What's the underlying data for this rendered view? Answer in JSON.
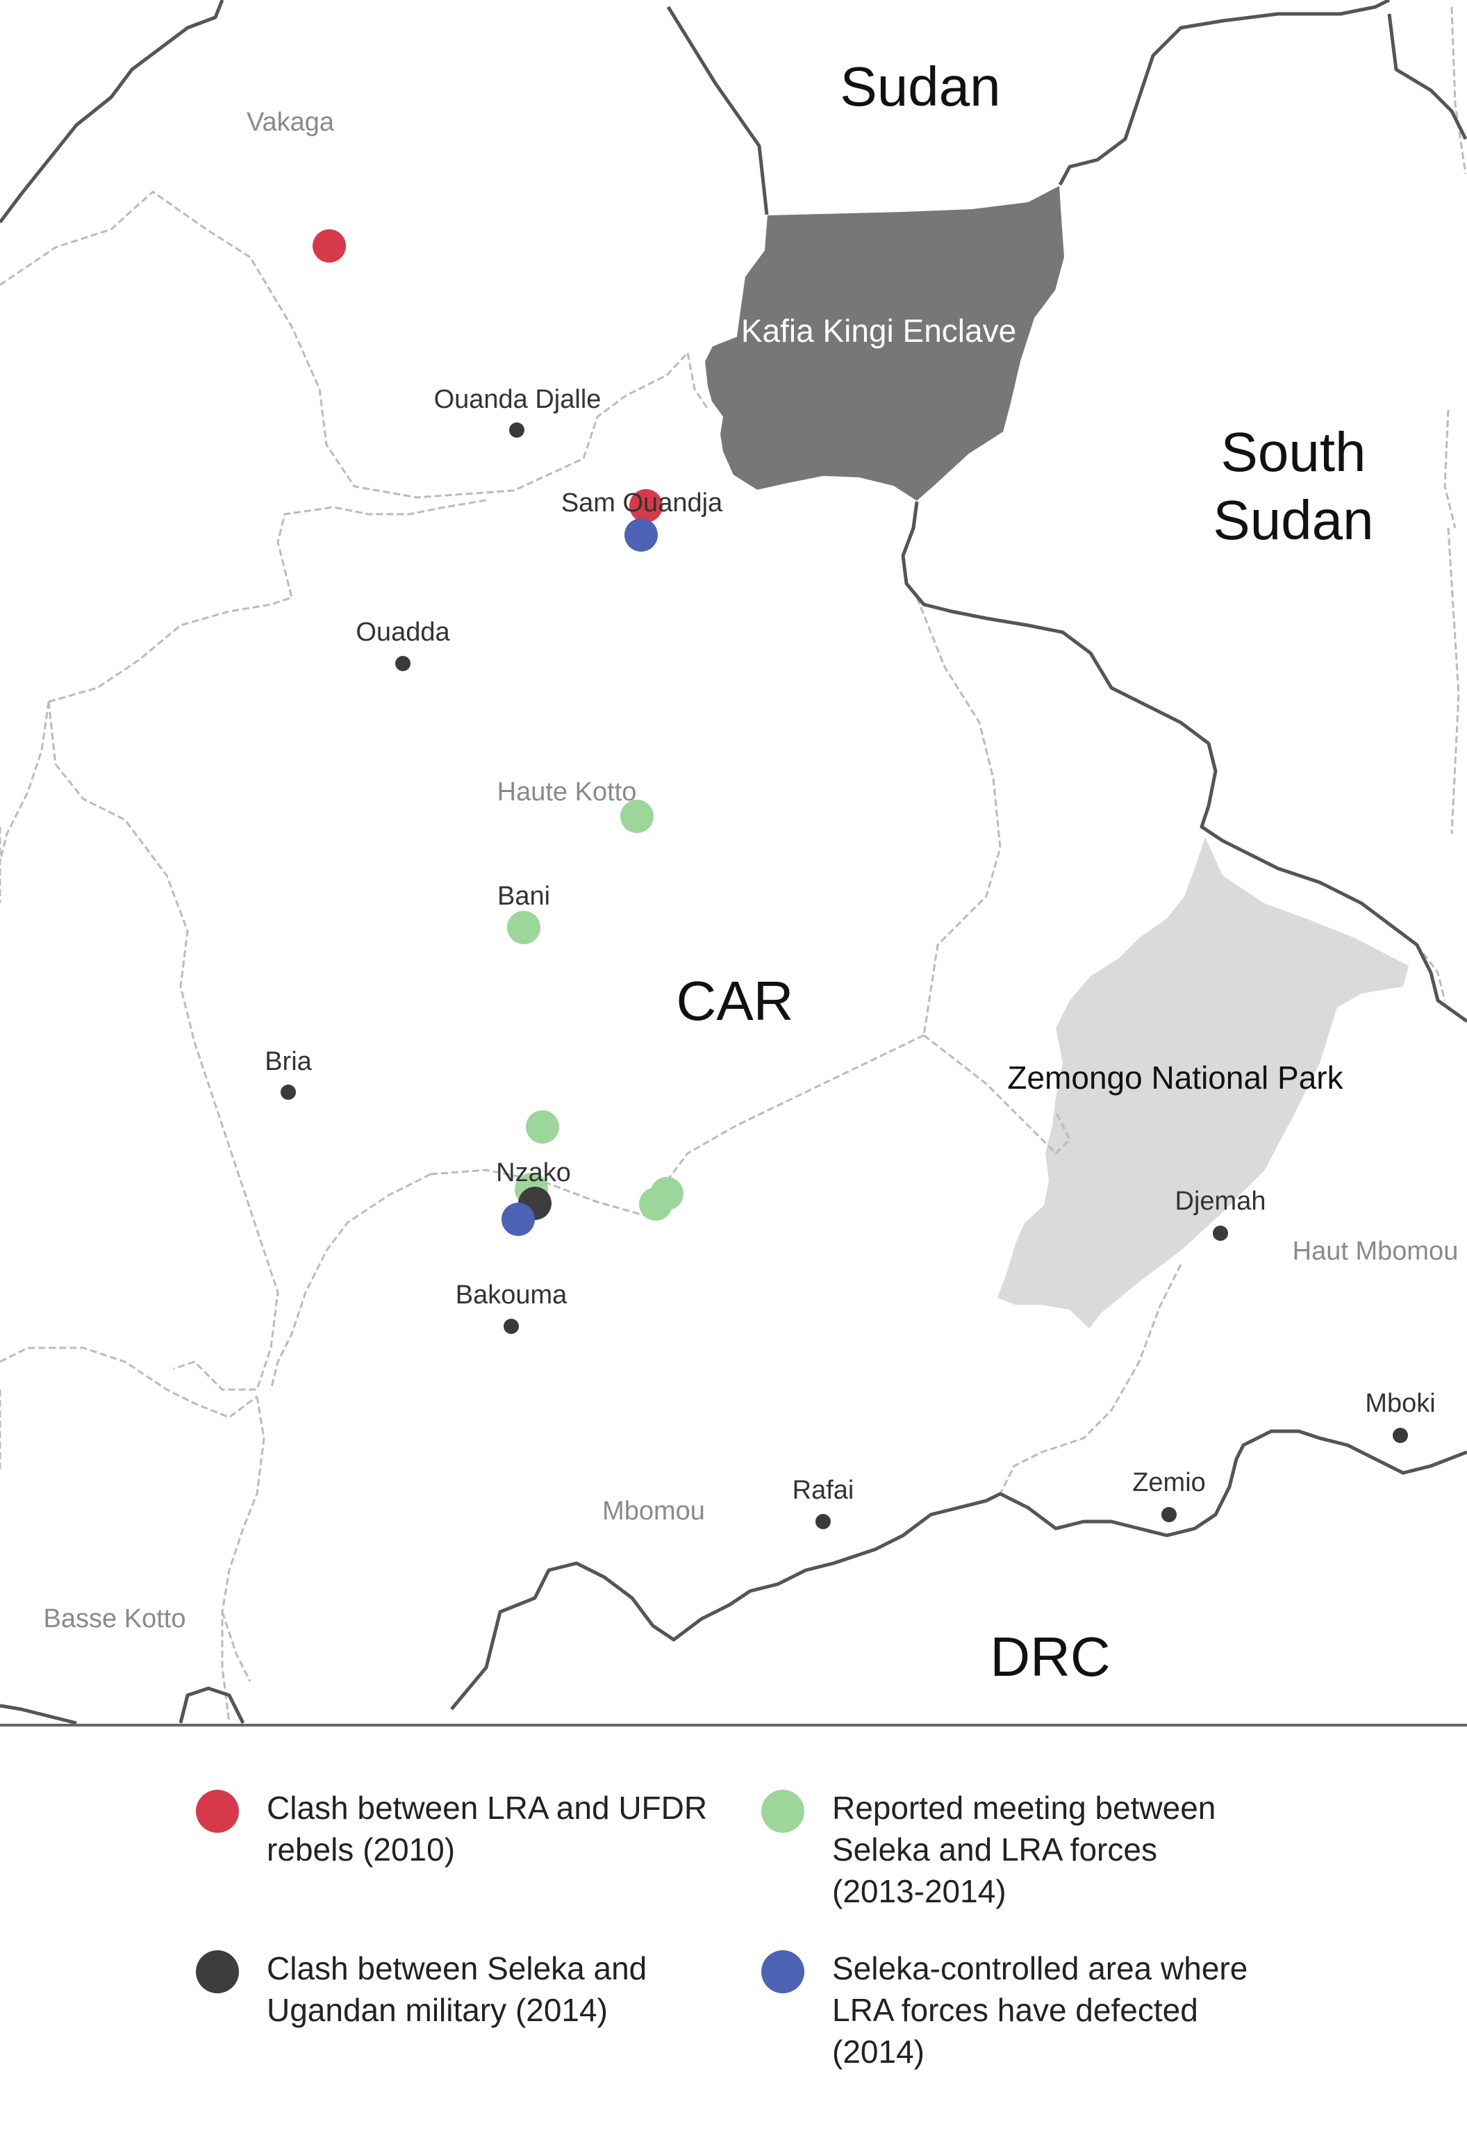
{
  "countries": {
    "sudan": "Sudan",
    "south_sudan": "South\nSudan",
    "car": "CAR",
    "drc": "DRC"
  },
  "areas": {
    "kafia_kingi": "Kafia Kingi Enclave",
    "zemongo": "Zemongo National Park"
  },
  "regions": {
    "vakaga": "Vakaga",
    "haute_kotto": "Haute Kotto",
    "haut_mbomou": "Haut Mbomou",
    "mbomou": "Mbomou",
    "basse_kotto": "Basse Kotto"
  },
  "towns": {
    "ouanda_djalle": "Ouanda Djalle",
    "sam_ouandja": "Sam Ouandja",
    "ouadda": "Ouadda",
    "bani": "Bani",
    "bria": "Bria",
    "nzako": "Nzako",
    "bakouma": "Bakouma",
    "djemah": "Djemah",
    "mboki": "Mboki",
    "zemio": "Zemio",
    "rafai": "Rafai"
  },
  "legend": {
    "red": "Clash between LRA and UFDR\nrebels (2010)",
    "black": "Clash between Seleka and\nUgandan military (2014)",
    "green": "Reported meeting between\nSeleka and LRA forces\n(2013-2014)",
    "blue": "Seleka-controlled area where\nLRA forces have defected\n(2014)"
  },
  "colors": {
    "red": "#d63a4a",
    "black": "#3d3d3d",
    "green": "#9dd69a",
    "blue": "#4c62b4",
    "enclave": "#777777",
    "park": "#dadada",
    "border": "#555555",
    "region_border": "#bbbbbb"
  }
}
